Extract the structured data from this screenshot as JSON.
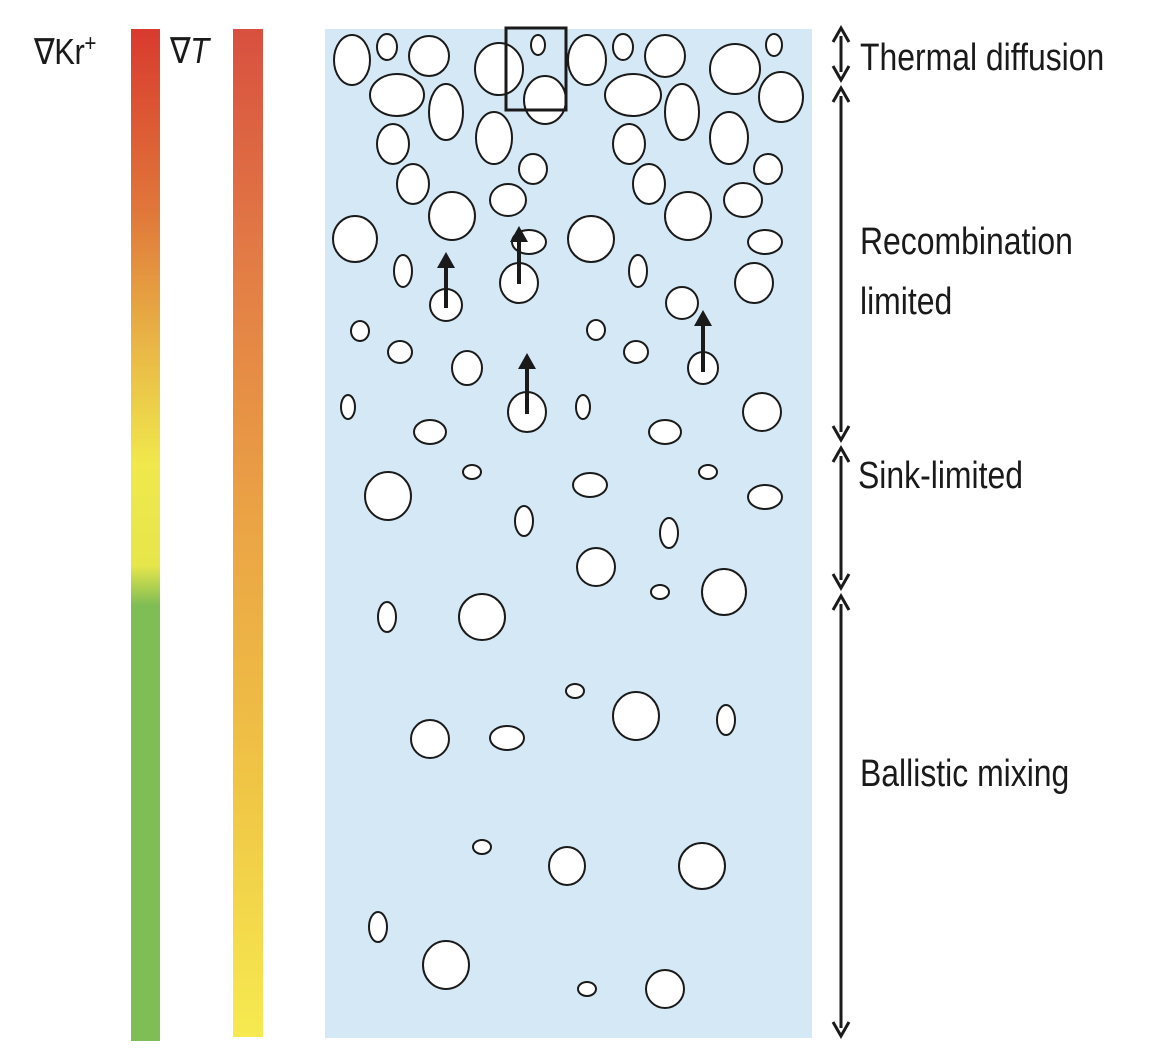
{
  "gradients": {
    "kr": {
      "symbol": "∇Kr",
      "superscript": "+",
      "colors": [
        "#d93a2e",
        "#e0773a",
        "#e9b545",
        "#f0e84c",
        "#e6e64b",
        "#7fbd55",
        "#7fbd55"
      ]
    },
    "temperature": {
      "symbol": "∇",
      "italic": "T",
      "colors": [
        "#d8503f",
        "#e27a45",
        "#eba545",
        "#f0c545",
        "#f6ea50"
      ]
    }
  },
  "panel_color": "#d5e8f5",
  "regions": [
    {
      "label": "Thermal diffusion"
    },
    {
      "label_line1": "Recombination",
      "label_line2": "limited"
    },
    {
      "label": "Sink-limited"
    },
    {
      "label": "Ballistic mixing"
    }
  ]
}
